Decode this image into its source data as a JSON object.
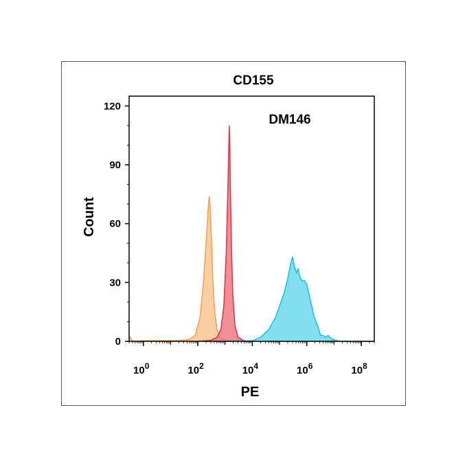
{
  "chart_data": {
    "type": "area",
    "title": "CD155",
    "annotation": "DM146",
    "xlabel": "PE",
    "ylabel": "Count",
    "xscale": "log",
    "xlim": [
      0.3,
      300000000
    ],
    "ylim": [
      0,
      125
    ],
    "x_ticks": [
      {
        "base": "10",
        "exp": "0",
        "value": 1
      },
      {
        "base": "10",
        "exp": "2",
        "value": 100
      },
      {
        "base": "10",
        "exp": "4",
        "value": 10000
      },
      {
        "base": "10",
        "exp": "6",
        "value": 1000000
      },
      {
        "base": "10",
        "exp": "8",
        "value": 100000000
      }
    ],
    "y_ticks": [
      0,
      30,
      60,
      90,
      120
    ],
    "grid": false,
    "series": [
      {
        "color": "#f5a04f",
        "fill": "#fbc594",
        "points": [
          [
            0.3,
            3
          ],
          [
            0.4,
            0
          ],
          [
            1,
            0.3
          ],
          [
            20,
            0.4
          ],
          [
            50,
            1
          ],
          [
            80,
            3
          ],
          [
            120,
            12
          ],
          [
            160,
            30
          ],
          [
            200,
            50
          ],
          [
            240,
            68
          ],
          [
            260,
            74
          ],
          [
            280,
            70
          ],
          [
            310,
            55
          ],
          [
            360,
            30
          ],
          [
            420,
            14
          ],
          [
            520,
            5
          ],
          [
            700,
            1.5
          ],
          [
            1200,
            0.4
          ],
          [
            5000,
            0
          ],
          [
            300000000,
            0
          ]
        ]
      },
      {
        "color": "#dd3344",
        "fill": "#ef7a84",
        "points": [
          [
            100,
            0
          ],
          [
            300,
            0.5
          ],
          [
            500,
            2
          ],
          [
            700,
            6
          ],
          [
            900,
            18
          ],
          [
            1100,
            45
          ],
          [
            1250,
            75
          ],
          [
            1350,
            95
          ],
          [
            1420,
            110
          ],
          [
            1480,
            102
          ],
          [
            1560,
            80
          ],
          [
            1700,
            50
          ],
          [
            1900,
            25
          ],
          [
            2300,
            8
          ],
          [
            3000,
            2
          ],
          [
            5000,
            0.3
          ],
          [
            10000,
            0
          ]
        ]
      },
      {
        "color": "#17c0de",
        "fill": "#6dd8ef",
        "points": [
          [
            1000,
            0
          ],
          [
            10000,
            0.3
          ],
          [
            20000,
            2
          ],
          [
            40000,
            6
          ],
          [
            70000,
            12
          ],
          [
            100000,
            18
          ],
          [
            150000,
            25
          ],
          [
            200000,
            32
          ],
          [
            260000,
            40
          ],
          [
            300000,
            43
          ],
          [
            350000,
            38
          ],
          [
            420000,
            35
          ],
          [
            480000,
            37
          ],
          [
            550000,
            33
          ],
          [
            650000,
            31
          ],
          [
            800000,
            31
          ],
          [
            1000000,
            29
          ],
          [
            1300000,
            22
          ],
          [
            1800000,
            13
          ],
          [
            2500000,
            8
          ],
          [
            3200000,
            3
          ],
          [
            4000000,
            3
          ],
          [
            5000000,
            2
          ],
          [
            6000000,
            3
          ],
          [
            7000000,
            2
          ],
          [
            9000000,
            1
          ],
          [
            15000000,
            0
          ],
          [
            300000000,
            0
          ]
        ]
      }
    ]
  }
}
